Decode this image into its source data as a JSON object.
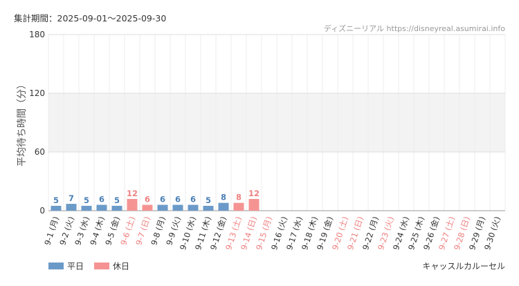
{
  "header": {
    "period_label": "集計期間：2025-09-01～2025-09-30",
    "source": "ディズニーリアル https://disneyreal.asumirai.info"
  },
  "footer": {
    "attraction": "キャッスルカルーセル"
  },
  "colors": {
    "weekday": "#6b9ac8",
    "holiday": "#f59393",
    "weekday_label": "#4a7fb5",
    "holiday_label": "#f08080",
    "band": "#f3f3f3",
    "grid": "#dddddd",
    "axis_text": "#333333"
  },
  "chart_data": {
    "type": "bar",
    "ylabel": "平均待ち時間（分）",
    "xlabel": "",
    "ylim": [
      0,
      180
    ],
    "yticks": [
      0,
      60,
      120,
      180
    ],
    "band": [
      60,
      120
    ],
    "legend": {
      "placement": "bottom-left",
      "entries": [
        {
          "name": "平日",
          "kind": "weekday"
        },
        {
          "name": "休日",
          "kind": "holiday"
        }
      ]
    },
    "categories": [
      "9-1 (月)",
      "9-2 (火)",
      "9-3 (水)",
      "9-4 (木)",
      "9-5 (金)",
      "9-6 (土)",
      "9-7 (日)",
      "9-8 (月)",
      "9-9 (火)",
      "9-10 (水)",
      "9-11 (木)",
      "9-12 (金)",
      "9-13 (土)",
      "9-14 (日)",
      "9-15 (月)",
      "9-16 (火)",
      "9-17 (水)",
      "9-18 (木)",
      "9-19 (金)",
      "9-20 (土)",
      "9-21 (日)",
      "9-22 (月)",
      "9-23 (火)",
      "9-24 (水)",
      "9-25 (木)",
      "9-26 (金)",
      "9-27 (土)",
      "9-28 (日)",
      "9-29 (月)",
      "9-30 (火)"
    ],
    "holiday": [
      false,
      false,
      false,
      false,
      false,
      true,
      true,
      false,
      false,
      false,
      false,
      false,
      true,
      true,
      true,
      false,
      false,
      false,
      false,
      true,
      true,
      false,
      true,
      false,
      false,
      false,
      true,
      true,
      false,
      false
    ],
    "values": [
      5,
      7,
      5,
      6,
      5,
      12,
      6,
      6,
      6,
      6,
      5,
      8,
      8,
      12,
      null,
      null,
      null,
      null,
      null,
      null,
      null,
      null,
      null,
      null,
      null,
      null,
      null,
      null,
      null,
      null
    ]
  }
}
